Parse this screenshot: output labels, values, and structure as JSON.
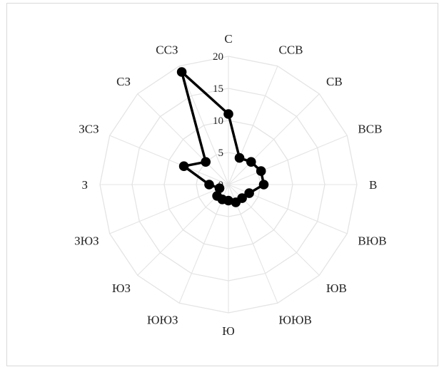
{
  "chart_data": {
    "type": "radar",
    "categories": [
      "С",
      "ССВ",
      "СВ",
      "ВСВ",
      "В",
      "ВЮВ",
      "ЮВ",
      "ЮЮВ",
      "Ю",
      "ЮЮЗ",
      "ЮЗ",
      "ЗЮЗ",
      "З",
      "ЗСЗ",
      "СЗ",
      "ССЗ"
    ],
    "ticks": [
      "0",
      "5",
      "10",
      "15",
      "20"
    ],
    "rmax": 20,
    "grid": true,
    "series": [
      {
        "values": [
          11,
          4.5,
          5,
          5.5,
          5.5,
          3.5,
          3,
          3,
          2.5,
          2.5,
          2.5,
          1.5,
          3,
          7.5,
          5,
          19
        ]
      }
    ],
    "colors": {
      "series": "#000000",
      "grid": "#e4e4e4",
      "text": "#262626"
    }
  }
}
